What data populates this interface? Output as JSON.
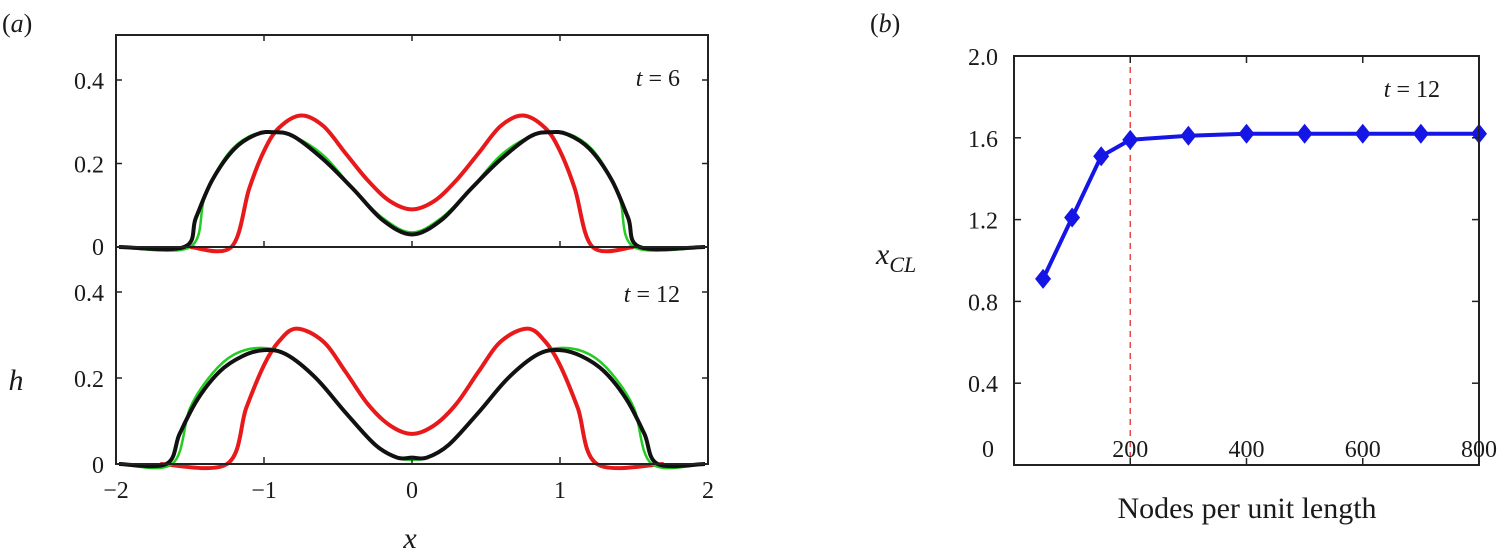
{
  "chart_data": [
    {
      "panel": "a",
      "panel_label": "(a)",
      "type": "line",
      "xlabel": "x",
      "ylabel": "h",
      "xlim": [
        -2,
        2
      ],
      "x_ticks": [
        -2,
        -1,
        0,
        1,
        2
      ],
      "x_tick_labels": [
        "−2",
        "−1",
        "0",
        "1",
        "2"
      ],
      "subplots": [
        {
          "annotation_var": "t",
          "annotation_rest": " = 6",
          "ylim": [
            0,
            0.5
          ],
          "y_ticks": [
            0,
            0.2,
            0.4
          ],
          "y_tick_labels": [
            "0",
            "0.2",
            "0.4"
          ],
          "series": [
            {
              "color": "#e8191b",
              "x": [
                -1.5,
                -1.22,
                -1.1,
                -1.0,
                -0.9,
                -0.75,
                -0.6,
                -0.45,
                -0.3,
                -0.15,
                0,
                0.15,
                0.3,
                0.45,
                0.6,
                0.75,
                0.9,
                1.0,
                1.1,
                1.22,
                1.5
              ],
              "y": [
                0,
                0,
                0.14,
                0.23,
                0.285,
                0.315,
                0.29,
                0.225,
                0.16,
                0.11,
                0.09,
                0.11,
                0.16,
                0.225,
                0.29,
                0.315,
                0.285,
                0.23,
                0.14,
                0,
                0
              ]
            },
            {
              "color": "#22cc22",
              "x": [
                -1.98,
                -1.5,
                -1.4,
                -1.25,
                -1.1,
                -0.95,
                -0.8,
                -0.6,
                -0.4,
                -0.2,
                0,
                0.2,
                0.4,
                0.6,
                0.8,
                0.95,
                1.1,
                1.25,
                1.4,
                1.5,
                1.98
              ],
              "y": [
                0,
                0,
                0.12,
                0.22,
                0.265,
                0.275,
                0.265,
                0.22,
                0.14,
                0.07,
                0.035,
                0.07,
                0.14,
                0.22,
                0.265,
                0.275,
                0.265,
                0.22,
                0.12,
                0,
                0
              ]
            },
            {
              "color": "#111111",
              "x": [
                -1.98,
                -1.54,
                -1.46,
                -1.35,
                -1.2,
                -1.05,
                -0.93,
                -0.8,
                -0.6,
                -0.4,
                -0.2,
                0,
                0.2,
                0.4,
                0.6,
                0.8,
                0.93,
                1.05,
                1.2,
                1.35,
                1.46,
                1.54,
                1.98
              ],
              "y": [
                0,
                0,
                0.07,
                0.16,
                0.235,
                0.27,
                0.275,
                0.265,
                0.21,
                0.14,
                0.065,
                0.03,
                0.065,
                0.14,
                0.21,
                0.265,
                0.275,
                0.27,
                0.235,
                0.16,
                0.07,
                0,
                0
              ]
            }
          ]
        },
        {
          "annotation_var": "t",
          "annotation_rest": " = 12",
          "ylim": [
            0,
            0.5
          ],
          "y_ticks": [
            0,
            0.2,
            0.4
          ],
          "y_tick_labels": [
            "0",
            "0.2",
            "0.4"
          ],
          "series": [
            {
              "color": "#e8191b",
              "x": [
                -1.7,
                -1.25,
                -1.12,
                -1.0,
                -0.9,
                -0.78,
                -0.6,
                -0.45,
                -0.3,
                -0.15,
                0,
                0.15,
                0.3,
                0.45,
                0.6,
                0.78,
                0.9,
                1.0,
                1.12,
                1.25,
                1.7
              ],
              "y": [
                0,
                0,
                0.13,
                0.23,
                0.285,
                0.315,
                0.285,
                0.215,
                0.14,
                0.09,
                0.07,
                0.09,
                0.14,
                0.215,
                0.285,
                0.315,
                0.285,
                0.23,
                0.13,
                0,
                0
              ]
            },
            {
              "color": "#22cc22",
              "x": [
                -1.98,
                -1.62,
                -1.5,
                -1.35,
                -1.2,
                -1.02,
                -0.85,
                -0.65,
                -0.45,
                -0.25,
                -0.1,
                0,
                0.1,
                0.25,
                0.45,
                0.65,
                0.85,
                1.02,
                1.2,
                1.35,
                1.5,
                1.62,
                1.98
              ],
              "y": [
                0,
                0,
                0.13,
                0.21,
                0.255,
                0.27,
                0.255,
                0.2,
                0.12,
                0.045,
                0.015,
                0.01,
                0.015,
                0.045,
                0.12,
                0.2,
                0.255,
                0.27,
                0.255,
                0.21,
                0.13,
                0,
                0
              ]
            },
            {
              "color": "#111111",
              "x": [
                -1.98,
                -1.66,
                -1.57,
                -1.45,
                -1.3,
                -1.15,
                -1.0,
                -0.85,
                -0.65,
                -0.45,
                -0.25,
                -0.1,
                0,
                0.1,
                0.25,
                0.45,
                0.65,
                0.85,
                1.0,
                1.15,
                1.3,
                1.45,
                1.57,
                1.66,
                1.98
              ],
              "y": [
                0,
                0,
                0.07,
                0.15,
                0.215,
                0.25,
                0.265,
                0.255,
                0.2,
                0.12,
                0.045,
                0.015,
                0.015,
                0.015,
                0.045,
                0.12,
                0.2,
                0.255,
                0.265,
                0.25,
                0.215,
                0.15,
                0.07,
                0,
                0
              ]
            }
          ]
        }
      ]
    },
    {
      "panel": "b",
      "panel_label": "(b)",
      "type": "line",
      "xlabel": "Nodes per unit length",
      "ylabel_main": "x",
      "ylabel_sub": "CL",
      "annotation_var": "t",
      "annotation_rest": " = 12",
      "xlim": [
        0,
        800
      ],
      "ylim": [
        0,
        2.0
      ],
      "x_ticks": [
        0,
        200,
        400,
        600,
        800
      ],
      "x_tick_labels": [
        "0",
        "200",
        "400",
        "600",
        "800"
      ],
      "y_ticks": [
        0,
        0.4,
        0.8,
        1.2,
        1.6,
        2.0
      ],
      "y_tick_labels": [
        "0",
        "0.4",
        "0.8",
        "1.2",
        "1.6",
        "2.0"
      ],
      "reference_line_x": 200,
      "series": [
        {
          "color": "#1515e6",
          "marker": "diamond",
          "x": [
            50,
            100,
            150,
            200,
            300,
            400,
            500,
            600,
            700,
            800
          ],
          "y": [
            0.91,
            1.21,
            1.51,
            1.59,
            1.61,
            1.62,
            1.62,
            1.62,
            1.62,
            1.62
          ]
        }
      ]
    }
  ]
}
